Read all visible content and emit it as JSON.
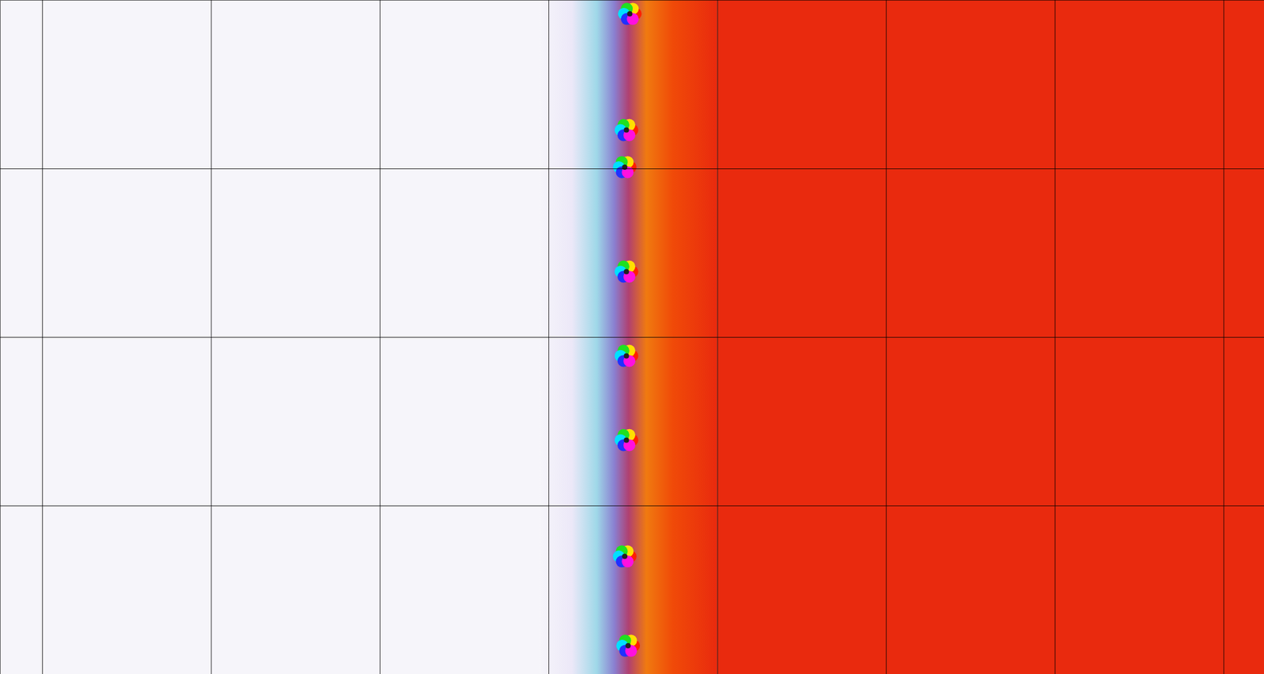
{
  "chart_data": {
    "type": "domain_coloring",
    "xlim": [
      -4.25,
      3.24
    ],
    "ylim": [
      -2,
      2
    ],
    "xticks": [
      -4,
      -3,
      -2,
      -1,
      0,
      1,
      2,
      3
    ],
    "yticks": [
      -1,
      0,
      1
    ],
    "grid": true,
    "tick_labels": false,
    "boundary": -0.6,
    "colors": [
      "#f6f5fa",
      "#e92a0e"
    ],
    "zeros": {
      "x": [
        -0.52,
        -0.54,
        -0.55,
        -0.54,
        -0.54,
        -0.54,
        -0.55,
        -0.53
      ],
      "y": [
        1.92,
        1.23,
        1.01,
        0.39,
        -0.11,
        -0.61,
        -1.3,
        -1.83
      ]
    }
  }
}
